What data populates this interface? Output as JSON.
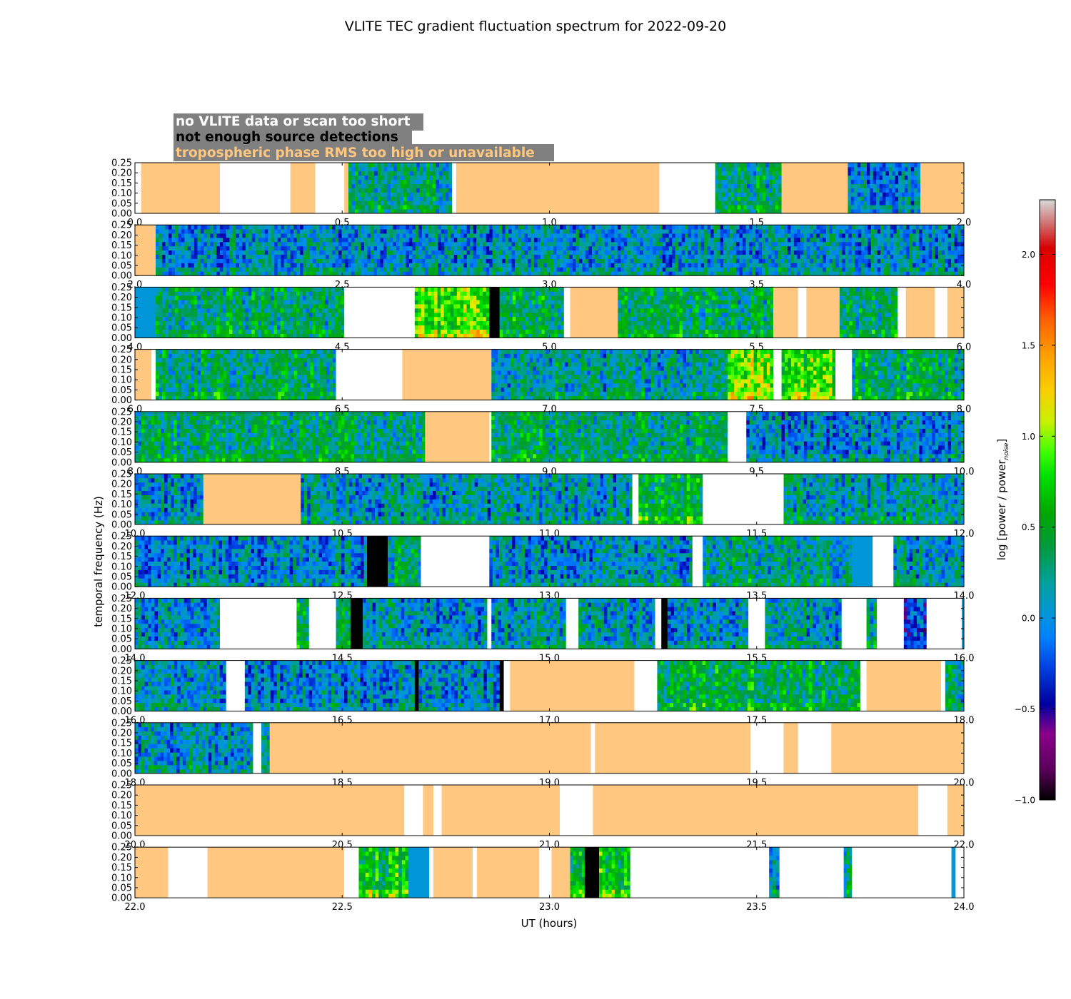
{
  "chart_data": {
    "type": "heatmap",
    "title": "VLITE TEC gradient fluctuation spectrum for 2022-09-20",
    "xlabel": "UT (hours)",
    "ylabel": "temporal frequency (Hz)",
    "ylim": [
      0,
      0.25
    ],
    "yticks": [
      "0.00",
      "0.05",
      "0.10",
      "0.15",
      "0.20",
      "0.25"
    ],
    "grid": false,
    "legend_placement": "top-left",
    "legend": [
      {
        "label": "no VLITE data or scan too short",
        "color": "#ffffff"
      },
      {
        "label": "not enough source detections",
        "color": "#000000"
      },
      {
        "label": "tropospheric phase RMS too high or unavailable",
        "color": "#ffc77f"
      }
    ],
    "legend_box_color": "#808080",
    "category_colors": {
      "orange": "#ffc77f",
      "white": "#ffffff",
      "black": "#000000",
      "blue": "#0096d8"
    },
    "colorbar": {
      "label_main": "log [power / power",
      "label_sub": "noise",
      "label_end": "]",
      "range": [
        -1.0,
        2.3
      ],
      "ticks": [
        "−1.0",
        "−0.5",
        "0.0",
        "0.5",
        "1.0",
        "1.5",
        "2.0"
      ],
      "tick_values": [
        -1.0,
        -0.5,
        0.0,
        0.5,
        1.0,
        1.5,
        2.0
      ]
    },
    "panels": [
      {
        "xlim": [
          0,
          2
        ],
        "xticks": [
          "0.0",
          "0.5",
          "1.0",
          "1.5",
          "2.0"
        ],
        "segments": [
          {
            "s": 0,
            "e": 0.015,
            "k": "white"
          },
          {
            "s": 0.015,
            "e": 0.205,
            "k": "orange"
          },
          {
            "s": 0.205,
            "e": 0.375,
            "k": "white"
          },
          {
            "s": 0.375,
            "e": 0.435,
            "k": "orange"
          },
          {
            "s": 0.435,
            "e": 0.505,
            "k": "white"
          },
          {
            "s": 0.505,
            "e": 0.515,
            "k": "orange"
          },
          {
            "s": 0.515,
            "e": 0.765,
            "k": "data",
            "a": 0.2
          },
          {
            "s": 0.765,
            "e": 0.775,
            "k": "white"
          },
          {
            "s": 0.775,
            "e": 1.265,
            "k": "orange"
          },
          {
            "s": 1.265,
            "e": 1.4,
            "k": "white"
          },
          {
            "s": 1.4,
            "e": 1.56,
            "k": "data",
            "a": 0.2
          },
          {
            "s": 1.56,
            "e": 1.72,
            "k": "orange"
          },
          {
            "s": 1.72,
            "e": 1.895,
            "k": "data",
            "a": -0.05
          },
          {
            "s": 1.895,
            "e": 2.0,
            "k": "orange"
          }
        ]
      },
      {
        "xlim": [
          2,
          4
        ],
        "xticks": [
          "2.0",
          "2.5",
          "3.0",
          "3.5",
          "4.0"
        ],
        "segments": [
          {
            "s": 2.0,
            "e": 2.05,
            "k": "orange"
          },
          {
            "s": 2.05,
            "e": 4.0,
            "k": "data",
            "a": -0.02
          }
        ]
      },
      {
        "xlim": [
          4,
          6
        ],
        "xticks": [
          "4.0",
          "4.5",
          "5.0",
          "5.5",
          "6.0"
        ],
        "segments": [
          {
            "s": 4.0,
            "e": 4.05,
            "k": "blue"
          },
          {
            "s": 4.05,
            "e": 4.505,
            "k": "data",
            "a": 0.3
          },
          {
            "s": 4.505,
            "e": 4.675,
            "k": "white"
          },
          {
            "s": 4.675,
            "e": 4.855,
            "k": "data",
            "a": 0.9
          },
          {
            "s": 4.855,
            "e": 4.88,
            "k": "black"
          },
          {
            "s": 4.88,
            "e": 5.035,
            "k": "data",
            "a": 0.4
          },
          {
            "s": 5.035,
            "e": 5.05,
            "k": "white"
          },
          {
            "s": 5.05,
            "e": 5.165,
            "k": "orange"
          },
          {
            "s": 5.165,
            "e": 5.54,
            "k": "data",
            "a": 0.3
          },
          {
            "s": 5.54,
            "e": 5.6,
            "k": "orange"
          },
          {
            "s": 5.6,
            "e": 5.62,
            "k": "white"
          },
          {
            "s": 5.62,
            "e": 5.7,
            "k": "orange"
          },
          {
            "s": 5.7,
            "e": 5.84,
            "k": "data",
            "a": 0.3
          },
          {
            "s": 5.84,
            "e": 5.86,
            "k": "white"
          },
          {
            "s": 5.86,
            "e": 5.93,
            "k": "orange"
          },
          {
            "s": 5.93,
            "e": 5.96,
            "k": "white"
          },
          {
            "s": 5.96,
            "e": 6.0,
            "k": "orange"
          }
        ]
      },
      {
        "xlim": [
          6,
          8
        ],
        "xticks": [
          "6.0",
          "6.5",
          "7.0",
          "7.5",
          "8.0"
        ],
        "segments": [
          {
            "s": 6.0,
            "e": 6.04,
            "k": "orange"
          },
          {
            "s": 6.04,
            "e": 6.05,
            "k": "white"
          },
          {
            "s": 6.05,
            "e": 6.485,
            "k": "data",
            "a": 0.3
          },
          {
            "s": 6.485,
            "e": 6.645,
            "k": "white"
          },
          {
            "s": 6.645,
            "e": 6.86,
            "k": "orange"
          },
          {
            "s": 6.86,
            "e": 7.43,
            "k": "data",
            "a": 0.1
          },
          {
            "s": 7.43,
            "e": 7.54,
            "k": "data",
            "a": 0.9
          },
          {
            "s": 7.54,
            "e": 7.56,
            "k": "white"
          },
          {
            "s": 7.56,
            "e": 7.69,
            "k": "data",
            "a": 0.8
          },
          {
            "s": 7.69,
            "e": 7.73,
            "k": "white"
          },
          {
            "s": 7.73,
            "e": 8.0,
            "k": "data",
            "a": 0.3
          }
        ]
      },
      {
        "xlim": [
          8,
          10
        ],
        "xticks": [
          "8.0",
          "8.5",
          "9.0",
          "9.5",
          "10.0"
        ],
        "segments": [
          {
            "s": 8.0,
            "e": 8.7,
            "k": "data",
            "a": 0.3
          },
          {
            "s": 8.7,
            "e": 8.855,
            "k": "orange"
          },
          {
            "s": 8.855,
            "e": 8.86,
            "k": "white"
          },
          {
            "s": 8.86,
            "e": 9.43,
            "k": "data",
            "a": 0.3
          },
          {
            "s": 9.43,
            "e": 9.475,
            "k": "white"
          },
          {
            "s": 9.475,
            "e": 10.0,
            "k": "data",
            "a": -0.05
          }
        ]
      },
      {
        "xlim": [
          10,
          12
        ],
        "xticks": [
          "10.0",
          "10.5",
          "11.0",
          "11.5",
          "12.0"
        ],
        "segments": [
          {
            "s": 10.0,
            "e": 10.165,
            "k": "data",
            "a": 0.0
          },
          {
            "s": 10.165,
            "e": 10.4,
            "k": "orange"
          },
          {
            "s": 10.4,
            "e": 11.2,
            "k": "data",
            "a": 0.05
          },
          {
            "s": 11.2,
            "e": 11.215,
            "k": "white"
          },
          {
            "s": 11.215,
            "e": 11.37,
            "k": "data",
            "a": 0.45
          },
          {
            "s": 11.37,
            "e": 11.565,
            "k": "white"
          },
          {
            "s": 11.565,
            "e": 12.0,
            "k": "data",
            "a": 0.1
          }
        ]
      },
      {
        "xlim": [
          12,
          14
        ],
        "xticks": [
          "12.0",
          "12.5",
          "13.0",
          "13.5",
          "14.0"
        ],
        "segments": [
          {
            "s": 12.0,
            "e": 12.56,
            "k": "data",
            "a": -0.05
          },
          {
            "s": 12.56,
            "e": 12.61,
            "k": "black"
          },
          {
            "s": 12.61,
            "e": 12.69,
            "k": "data",
            "a": 0.2
          },
          {
            "s": 12.69,
            "e": 12.855,
            "k": "white"
          },
          {
            "s": 12.855,
            "e": 13.345,
            "k": "data",
            "a": 0.0
          },
          {
            "s": 13.345,
            "e": 13.37,
            "k": "white"
          },
          {
            "s": 13.37,
            "e": 13.73,
            "k": "data",
            "a": 0.2
          },
          {
            "s": 13.73,
            "e": 13.78,
            "k": "blue"
          },
          {
            "s": 13.78,
            "e": 13.83,
            "k": "white"
          },
          {
            "s": 13.83,
            "e": 14.0,
            "k": "data",
            "a": 0.1
          }
        ]
      },
      {
        "xlim": [
          14,
          16
        ],
        "xticks": [
          "14.0",
          "14.5",
          "15.0",
          "15.5",
          "16.0"
        ],
        "segments": [
          {
            "s": 14.0,
            "e": 14.205,
            "k": "data",
            "a": 0.0
          },
          {
            "s": 14.205,
            "e": 14.39,
            "k": "white"
          },
          {
            "s": 14.39,
            "e": 14.42,
            "k": "data",
            "a": 0.3
          },
          {
            "s": 14.42,
            "e": 14.485,
            "k": "white"
          },
          {
            "s": 14.485,
            "e": 14.52,
            "k": "data",
            "a": 0.3
          },
          {
            "s": 14.52,
            "e": 14.55,
            "k": "black"
          },
          {
            "s": 14.55,
            "e": 14.85,
            "k": "data",
            "a": 0.0
          },
          {
            "s": 14.85,
            "e": 14.86,
            "k": "white"
          },
          {
            "s": 14.86,
            "e": 15.04,
            "k": "data",
            "a": 0.1
          },
          {
            "s": 15.04,
            "e": 15.07,
            "k": "white"
          },
          {
            "s": 15.07,
            "e": 15.255,
            "k": "data",
            "a": 0.1
          },
          {
            "s": 15.255,
            "e": 15.27,
            "k": "white"
          },
          {
            "s": 15.27,
            "e": 15.285,
            "k": "black"
          },
          {
            "s": 15.285,
            "e": 15.48,
            "k": "data",
            "a": 0.0
          },
          {
            "s": 15.48,
            "e": 15.52,
            "k": "white"
          },
          {
            "s": 15.52,
            "e": 15.705,
            "k": "data",
            "a": 0.1
          },
          {
            "s": 15.705,
            "e": 15.765,
            "k": "white"
          },
          {
            "s": 15.765,
            "e": 15.79,
            "k": "data",
            "a": 0.2
          },
          {
            "s": 15.79,
            "e": 15.855,
            "k": "white"
          },
          {
            "s": 15.855,
            "e": 15.91,
            "k": "data",
            "a": -0.3
          },
          {
            "s": 15.91,
            "e": 15.995,
            "k": "white"
          },
          {
            "s": 15.995,
            "e": 16.0,
            "k": "blue"
          }
        ]
      },
      {
        "xlim": [
          16,
          18
        ],
        "xticks": [
          "16.0",
          "16.5",
          "17.0",
          "17.5",
          "18.0"
        ],
        "segments": [
          {
            "s": 16.0,
            "e": 16.22,
            "k": "data",
            "a": 0.0
          },
          {
            "s": 16.22,
            "e": 16.265,
            "k": "white"
          },
          {
            "s": 16.265,
            "e": 16.675,
            "k": "data",
            "a": -0.05
          },
          {
            "s": 16.675,
            "e": 16.685,
            "k": "black"
          },
          {
            "s": 16.685,
            "e": 16.88,
            "k": "data",
            "a": -0.05
          },
          {
            "s": 16.88,
            "e": 16.89,
            "k": "black"
          },
          {
            "s": 16.89,
            "e": 16.905,
            "k": "white"
          },
          {
            "s": 16.905,
            "e": 17.205,
            "k": "orange"
          },
          {
            "s": 17.205,
            "e": 17.26,
            "k": "white"
          },
          {
            "s": 17.26,
            "e": 17.75,
            "k": "data",
            "a": 0.4
          },
          {
            "s": 17.75,
            "e": 17.765,
            "k": "white"
          },
          {
            "s": 17.765,
            "e": 17.945,
            "k": "orange"
          },
          {
            "s": 17.945,
            "e": 17.955,
            "k": "white"
          },
          {
            "s": 17.955,
            "e": 18.0,
            "k": "data",
            "a": 0.2
          }
        ]
      },
      {
        "xlim": [
          18,
          20
        ],
        "xticks": [
          "18.0",
          "18.5",
          "19.0",
          "19.5",
          "20.0"
        ],
        "segments": [
          {
            "s": 18.0,
            "e": 18.285,
            "k": "data",
            "a": 0.0
          },
          {
            "s": 18.285,
            "e": 18.305,
            "k": "white"
          },
          {
            "s": 18.305,
            "e": 18.325,
            "k": "data",
            "a": 0.2
          },
          {
            "s": 18.325,
            "e": 19.1,
            "k": "orange"
          },
          {
            "s": 19.1,
            "e": 19.11,
            "k": "white"
          },
          {
            "s": 19.11,
            "e": 19.485,
            "k": "orange"
          },
          {
            "s": 19.485,
            "e": 19.565,
            "k": "white"
          },
          {
            "s": 19.565,
            "e": 19.6,
            "k": "orange"
          },
          {
            "s": 19.6,
            "e": 19.68,
            "k": "white"
          },
          {
            "s": 19.68,
            "e": 20.0,
            "k": "orange"
          }
        ]
      },
      {
        "xlim": [
          20,
          22
        ],
        "xticks": [
          "20.0",
          "20.5",
          "21.0",
          "21.5",
          "22.0"
        ],
        "segments": [
          {
            "s": 20.0,
            "e": 20.65,
            "k": "orange"
          },
          {
            "s": 20.65,
            "e": 20.695,
            "k": "white"
          },
          {
            "s": 20.695,
            "e": 20.72,
            "k": "orange"
          },
          {
            "s": 20.72,
            "e": 20.74,
            "k": "white"
          },
          {
            "s": 20.74,
            "e": 21.025,
            "k": "orange"
          },
          {
            "s": 21.025,
            "e": 21.105,
            "k": "white"
          },
          {
            "s": 21.105,
            "e": 21.89,
            "k": "orange"
          },
          {
            "s": 21.89,
            "e": 21.96,
            "k": "white"
          },
          {
            "s": 21.96,
            "e": 22.0,
            "k": "orange"
          }
        ]
      },
      {
        "xlim": [
          22,
          24
        ],
        "xticks": [
          "22.0",
          "22.5",
          "23.0",
          "23.5",
          "24.0"
        ],
        "segments": [
          {
            "s": 22.0,
            "e": 22.08,
            "k": "orange"
          },
          {
            "s": 22.08,
            "e": 22.175,
            "k": "white"
          },
          {
            "s": 22.175,
            "e": 22.505,
            "k": "orange"
          },
          {
            "s": 22.505,
            "e": 22.54,
            "k": "white"
          },
          {
            "s": 22.54,
            "e": 22.66,
            "k": "data",
            "a": 0.6
          },
          {
            "s": 22.66,
            "e": 22.71,
            "k": "blue"
          },
          {
            "s": 22.71,
            "e": 22.72,
            "k": "white"
          },
          {
            "s": 22.72,
            "e": 22.815,
            "k": "orange"
          },
          {
            "s": 22.815,
            "e": 22.825,
            "k": "white"
          },
          {
            "s": 22.825,
            "e": 22.975,
            "k": "orange"
          },
          {
            "s": 22.975,
            "e": 23.005,
            "k": "white"
          },
          {
            "s": 23.005,
            "e": 23.05,
            "k": "orange"
          },
          {
            "s": 23.05,
            "e": 23.085,
            "k": "data",
            "a": 0.5
          },
          {
            "s": 23.085,
            "e": 23.12,
            "k": "black"
          },
          {
            "s": 23.12,
            "e": 23.195,
            "k": "data",
            "a": 0.6
          },
          {
            "s": 23.195,
            "e": 23.53,
            "k": "white"
          },
          {
            "s": 23.53,
            "e": 23.555,
            "k": "data",
            "a": 0.1
          },
          {
            "s": 23.555,
            "e": 23.71,
            "k": "white"
          },
          {
            "s": 23.71,
            "e": 23.73,
            "k": "data",
            "a": 0.1
          },
          {
            "s": 23.73,
            "e": 23.97,
            "k": "white"
          },
          {
            "s": 23.97,
            "e": 23.98,
            "k": "blue"
          },
          {
            "s": 23.98,
            "e": 24.0,
            "k": "white"
          }
        ]
      }
    ]
  }
}
